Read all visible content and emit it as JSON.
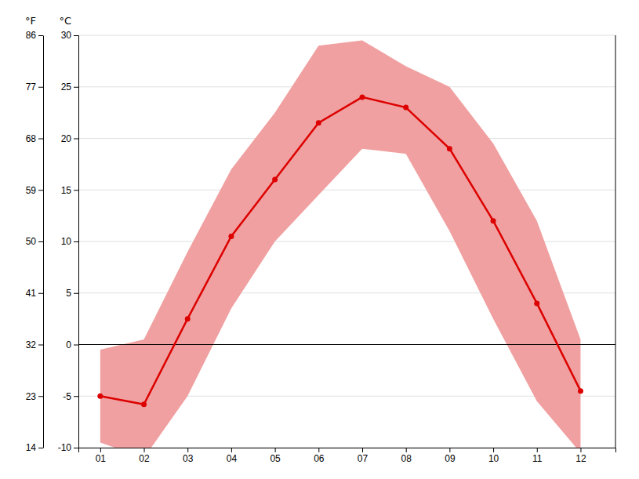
{
  "chart_data": {
    "type": "line",
    "x": [
      1,
      2,
      3,
      4,
      5,
      6,
      7,
      8,
      9,
      10,
      11,
      12
    ],
    "xlim": [
      0.5,
      12.8
    ],
    "xticks": [
      {
        "value": 1,
        "label": "01"
      },
      {
        "value": 2,
        "label": "02"
      },
      {
        "value": 3,
        "label": "03"
      },
      {
        "value": 4,
        "label": "04"
      },
      {
        "value": 5,
        "label": "05"
      },
      {
        "value": 6,
        "label": "06"
      },
      {
        "value": 7,
        "label": "07"
      },
      {
        "value": 8,
        "label": "08"
      },
      {
        "value": 9,
        "label": "09"
      },
      {
        "value": 10,
        "label": "10"
      },
      {
        "value": 11,
        "label": "11"
      },
      {
        "value": 12,
        "label": "12"
      }
    ],
    "ylabel": "°C",
    "ylim": [
      -10,
      30
    ],
    "yticks": [
      -10,
      -5,
      0,
      5,
      10,
      15,
      20,
      25,
      30
    ],
    "y2label": "°F",
    "y2lim": [
      14,
      86
    ],
    "y2ticks": [
      14,
      23,
      32,
      41,
      50,
      59,
      68,
      77,
      86
    ],
    "grid": true,
    "series": [
      {
        "type": "area",
        "color": "#f0a0a0",
        "low": [
          -9.5,
          -11.0,
          -5.0,
          3.5,
          10.0,
          14.5,
          19.0,
          18.5,
          11.0,
          2.5,
          -5.5,
          -10.5
        ],
        "high": [
          -0.5,
          0.5,
          9.0,
          17.0,
          22.5,
          29.0,
          29.5,
          27.0,
          25.0,
          19.5,
          12.0,
          0.5
        ]
      },
      {
        "type": "line",
        "color": "#dd0000",
        "marker": "circle",
        "values": [
          -5.0,
          -5.8,
          2.5,
          10.5,
          16.0,
          21.5,
          24.0,
          23.0,
          19.0,
          12.0,
          4.0,
          -4.5
        ]
      }
    ],
    "reference_lines": [
      {
        "value": 0,
        "color": "#000000"
      }
    ]
  }
}
